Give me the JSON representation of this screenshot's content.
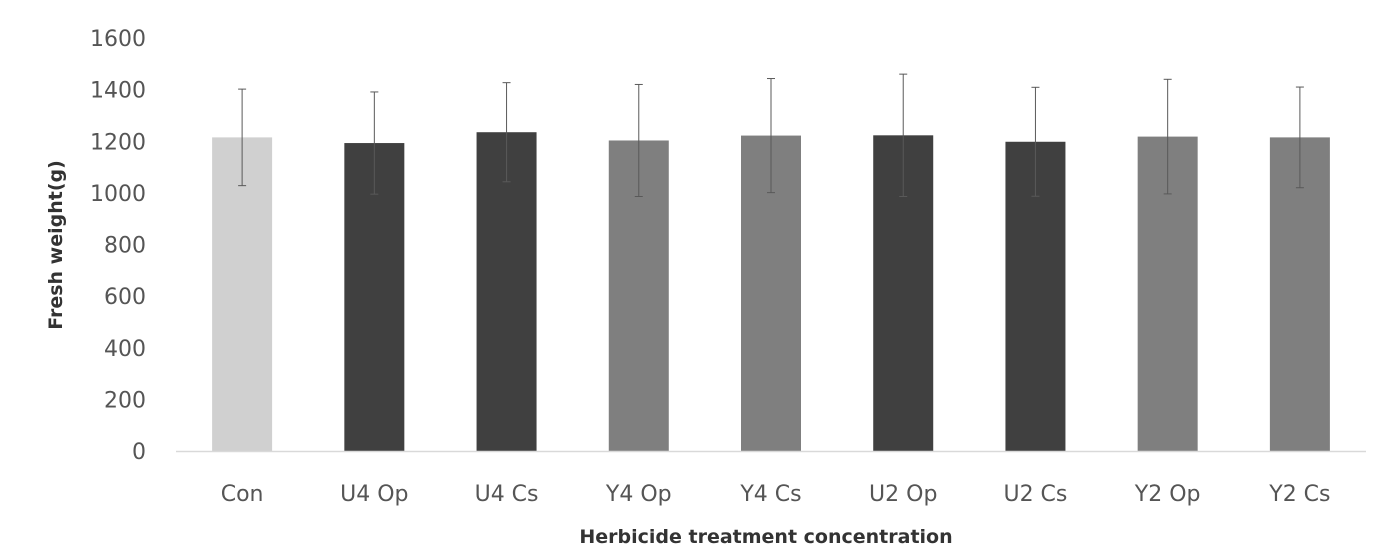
{
  "chart_data": {
    "type": "bar",
    "xlabel": "Herbicide treatment concentration",
    "ylabel": "Fresh weight(g)",
    "ylim": [
      0,
      1600
    ],
    "yticks": [
      0,
      200,
      400,
      600,
      800,
      1000,
      1200,
      1400,
      1600
    ],
    "grid": false,
    "categories": [
      "Con",
      "U4 Op",
      "U4 Cs",
      "Y4 Op",
      "Y4 Cs",
      "U2 Op",
      "U2 Cs",
      "Y2 Op",
      "Y2 Cs"
    ],
    "values": [
      1215,
      1193,
      1235,
      1203,
      1222,
      1223,
      1198,
      1218,
      1215
    ],
    "errors": [
      187,
      198,
      192,
      217,
      221,
      237,
      211,
      222,
      195
    ],
    "colors": [
      "#d0d0d0",
      "#404040",
      "#404040",
      "#7f7f7f",
      "#7f7f7f",
      "#404040",
      "#404040",
      "#7f7f7f",
      "#7f7f7f"
    ]
  }
}
